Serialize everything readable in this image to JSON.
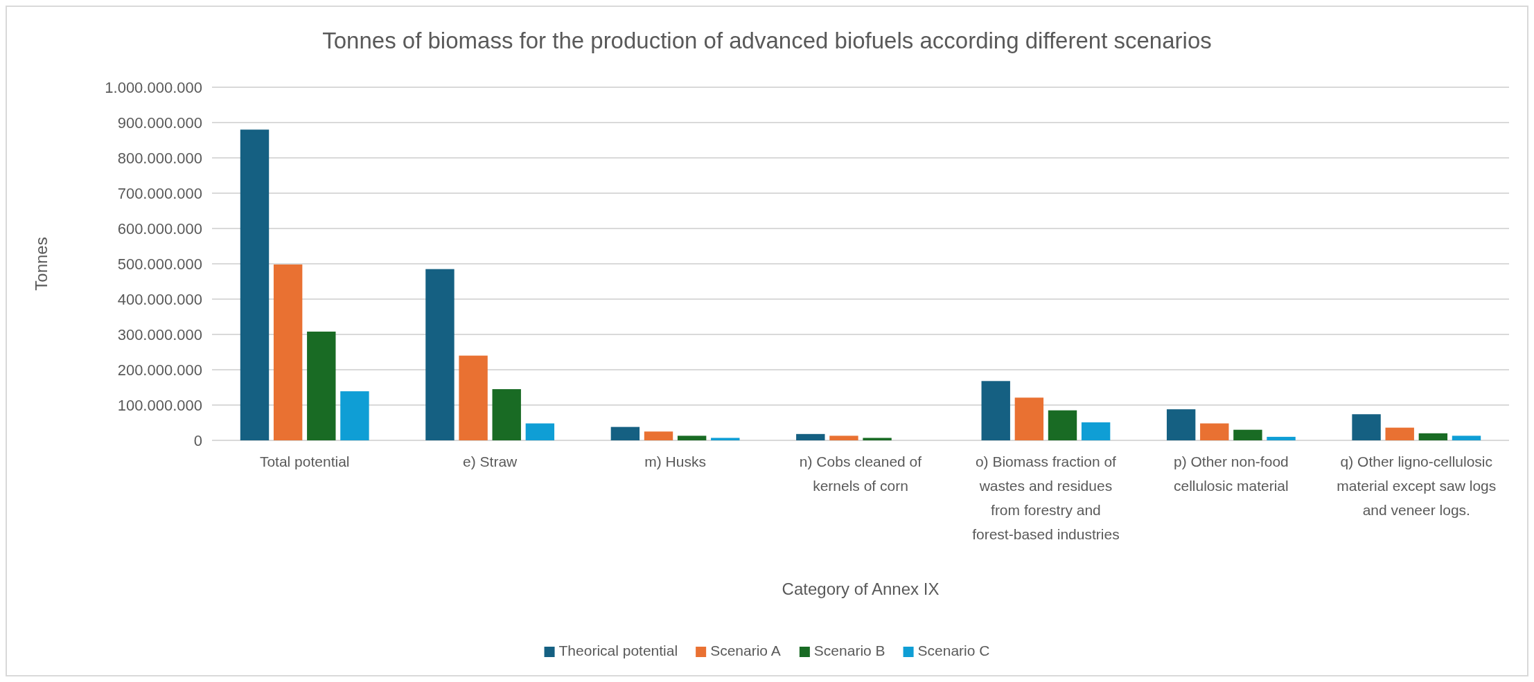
{
  "chart_data": {
    "type": "bar",
    "title": "Tonnes of biomass for the production of advanced biofuels according different scenarios",
    "xlabel": "Category of Annex IX",
    "ylabel": "Tonnes",
    "categories": [
      "Total potential",
      "e) Straw",
      "m) Husks",
      "n) Cobs cleaned of kernels of corn",
      "o) Biomass fraction of wastes and residues from forestry and forest-based industries",
      "p) Other non-food cellulosic material",
      "q) Other ligno-cellulosic material except saw logs and veneer logs."
    ],
    "series": [
      {
        "name": "Theorical potential",
        "color": "#156082",
        "values": [
          880000000,
          485000000,
          38000000,
          18000000,
          168000000,
          88000000,
          74000000
        ]
      },
      {
        "name": "Scenario A",
        "color": "#e97132",
        "values": [
          498000000,
          240000000,
          25000000,
          13000000,
          121000000,
          48000000,
          36000000
        ]
      },
      {
        "name": "Scenario B",
        "color": "#196b24",
        "values": [
          308000000,
          145000000,
          13000000,
          7000000,
          85000000,
          30000000,
          20000000
        ]
      },
      {
        "name": "Scenario C",
        "color": "#0f9ed5",
        "values": [
          139000000,
          48000000,
          7000000,
          0,
          51000000,
          10000000,
          13000000
        ]
      }
    ],
    "ylim": [
      0,
      1000000000
    ],
    "yticks": [
      0,
      {
        "value": 100000000,
        "label": "100.000.000"
      },
      {
        "value": 200000000,
        "label": "200.000.000"
      },
      {
        "value": 300000000,
        "label": "300.000.000"
      },
      {
        "value": 400000000,
        "label": "400.000.000"
      },
      {
        "value": 500000000,
        "label": "500.000.000"
      },
      {
        "value": 600000000,
        "label": "600.000.000"
      },
      {
        "value": 700000000,
        "label": "700.000.000"
      },
      {
        "value": 800000000,
        "label": "800.000.000"
      },
      {
        "value": 900000000,
        "label": "900.000.000"
      },
      {
        "value": 1000000000,
        "label": "1.000.000.000"
      }
    ],
    "grid": "y",
    "legend": "bottom"
  }
}
